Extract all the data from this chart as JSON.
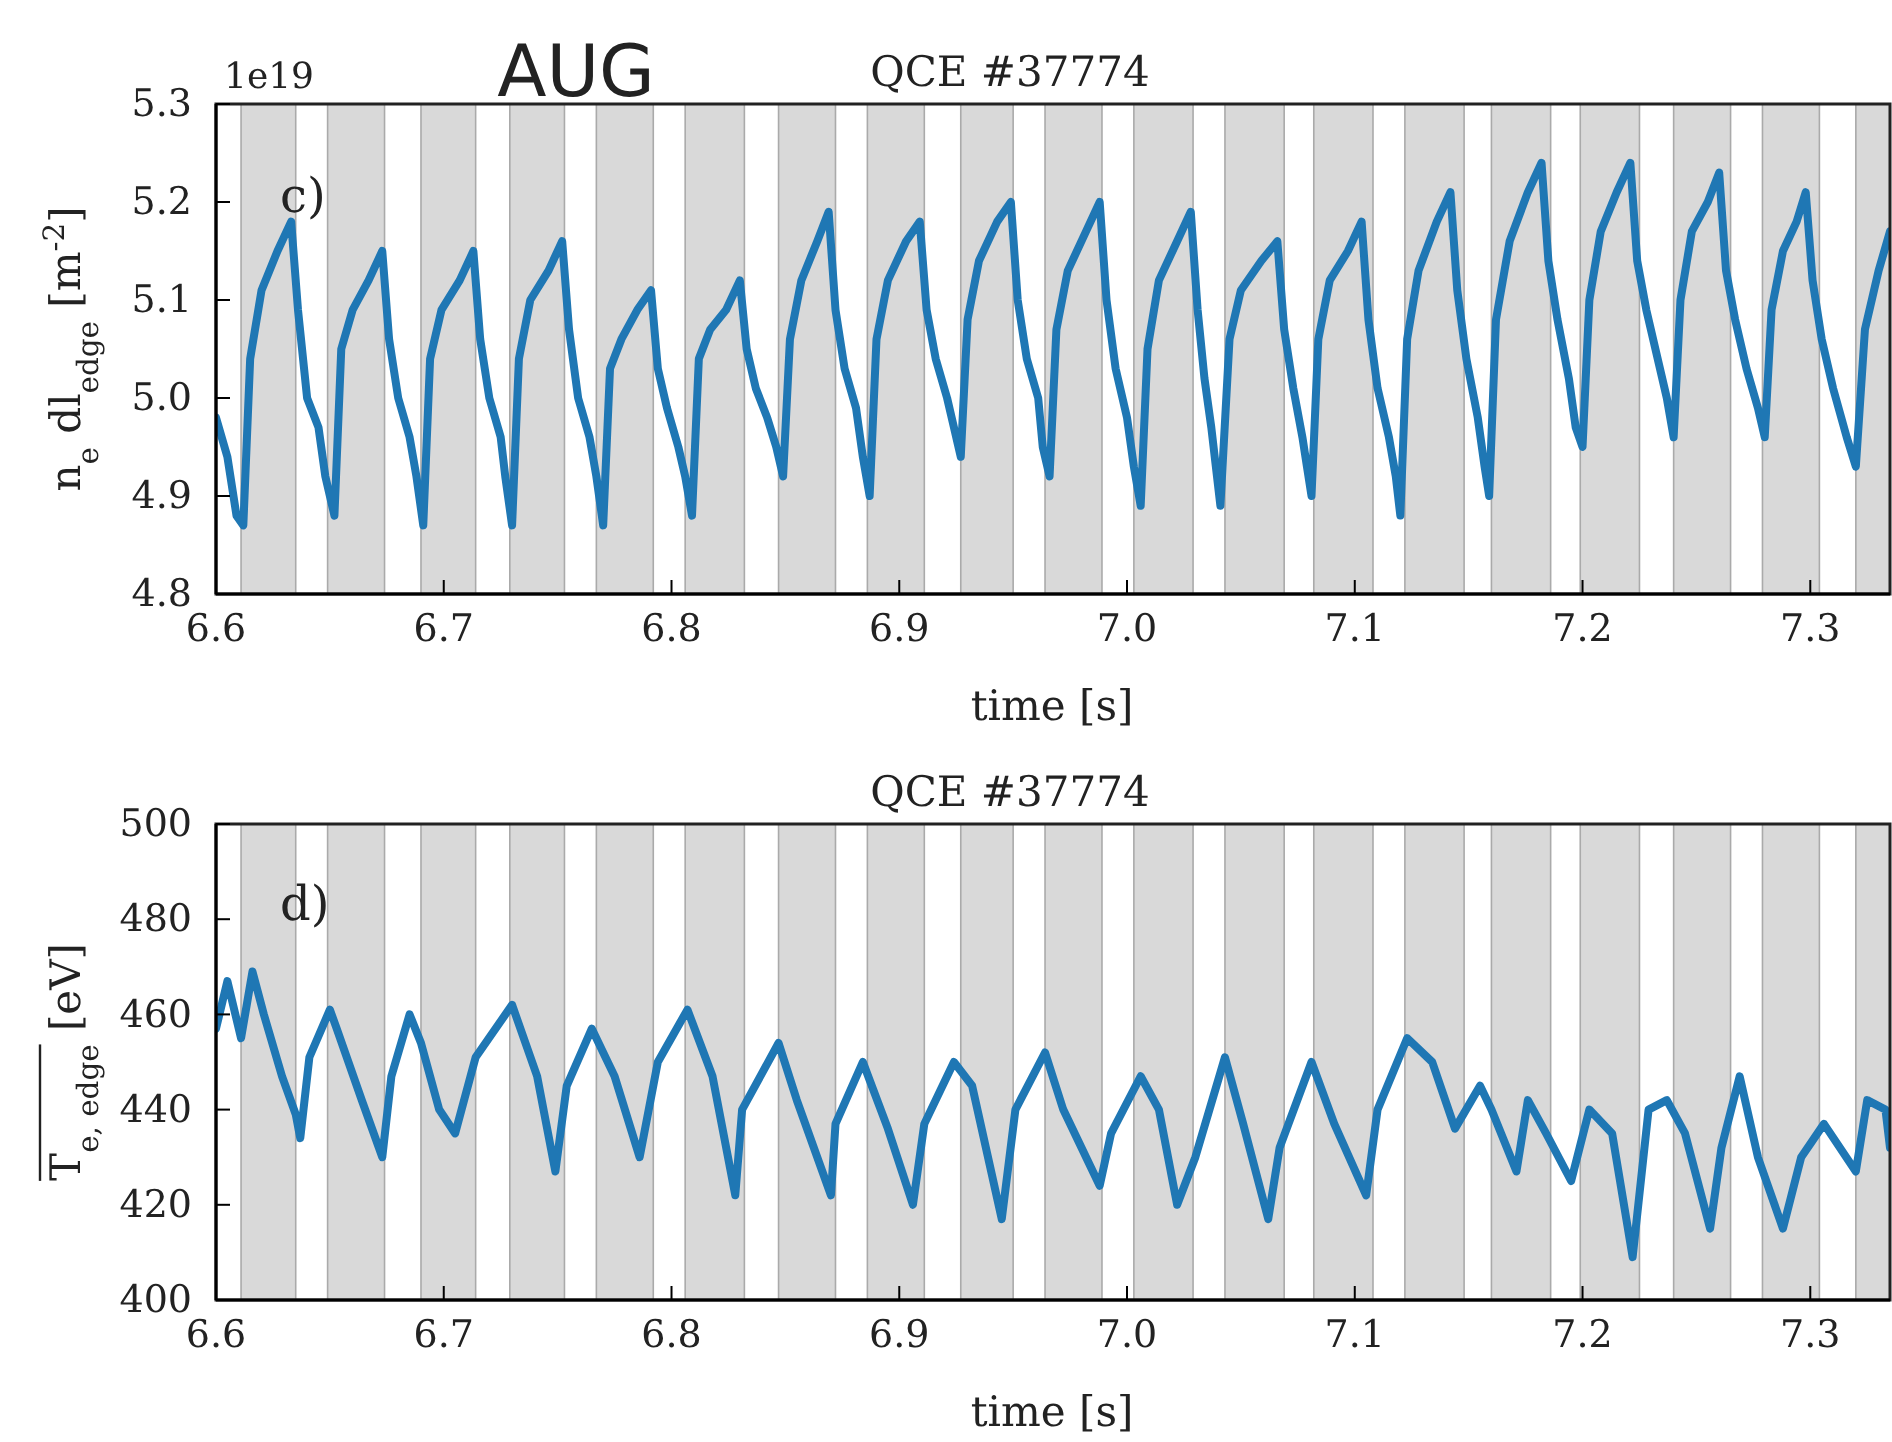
{
  "chart_data": [
    {
      "type": "line",
      "title": "QCE #37774",
      "xlabel": "time [s]",
      "ylabel": "n$_{e}$ dl$_{edge}$ [m$^{-2}$]",
      "annotations": [
        "AUG",
        "1e19",
        "c)"
      ],
      "xlim": [
        6.6,
        7.335
      ],
      "xticks": [
        6.6,
        6.7,
        6.8,
        6.9,
        {
          "value": 7.0,
          "label": "7.0"
        },
        7.1,
        7.2,
        7.3
      ],
      "ylim": [
        4.8,
        5.3
      ],
      "yticks": [
        4.8,
        4.9,
        {
          "value": 5.0,
          "label": "5.0"
        },
        5.1,
        5.2,
        5.3
      ],
      "grid": false,
      "bands": [
        {
          "axis": "x",
          "from": 6.611,
          "to": 6.635,
          "color": "#d9d9d9"
        },
        {
          "axis": "x",
          "from": 6.649,
          "to": 6.674,
          "color": "#d9d9d9"
        },
        {
          "axis": "x",
          "from": 6.69,
          "to": 6.714,
          "color": "#d9d9d9"
        },
        {
          "axis": "x",
          "from": 6.729,
          "to": 6.753,
          "color": "#d9d9d9"
        },
        {
          "axis": "x",
          "from": 6.767,
          "to": 6.792,
          "color": "#d9d9d9"
        },
        {
          "axis": "x",
          "from": 6.806,
          "to": 6.832,
          "color": "#d9d9d9"
        },
        {
          "axis": "x",
          "from": 6.847,
          "to": 6.872,
          "color": "#d9d9d9"
        },
        {
          "axis": "x",
          "from": 6.886,
          "to": 6.911,
          "color": "#d9d9d9"
        },
        {
          "axis": "x",
          "from": 6.927,
          "to": 6.95,
          "color": "#d9d9d9"
        },
        {
          "axis": "x",
          "from": 6.964,
          "to": 6.989,
          "color": "#d9d9d9"
        },
        {
          "axis": "x",
          "from": 7.003,
          "to": 7.029,
          "color": "#d9d9d9"
        },
        {
          "axis": "x",
          "from": 7.043,
          "to": 7.069,
          "color": "#d9d9d9"
        },
        {
          "axis": "x",
          "from": 7.082,
          "to": 7.108,
          "color": "#d9d9d9"
        },
        {
          "axis": "x",
          "from": 7.122,
          "to": 7.148,
          "color": "#d9d9d9"
        },
        {
          "axis": "x",
          "from": 7.16,
          "to": 7.186,
          "color": "#d9d9d9"
        },
        {
          "axis": "x",
          "from": 7.199,
          "to": 7.225,
          "color": "#d9d9d9"
        },
        {
          "axis": "x",
          "from": 7.24,
          "to": 7.265,
          "color": "#d9d9d9"
        },
        {
          "axis": "x",
          "from": 7.279,
          "to": 7.304,
          "color": "#d9d9d9"
        },
        {
          "axis": "x",
          "from": 7.32,
          "to": 7.335,
          "color": "#d9d9d9"
        }
      ],
      "series": [
        {
          "color": "#1f77b4",
          "x": [
            6.6,
            6.605,
            6.609,
            6.612,
            6.615,
            6.62,
            6.627,
            6.633,
            6.636,
            6.64,
            6.645,
            6.648,
            6.652,
            6.655,
            6.66,
            6.667,
            6.673,
            6.676,
            6.68,
            6.685,
            6.688,
            6.691,
            6.694,
            6.699,
            6.707,
            6.713,
            6.716,
            6.72,
            6.725,
            6.727,
            6.73,
            6.733,
            6.738,
            6.746,
            6.752,
            6.755,
            6.759,
            6.764,
            6.767,
            6.77,
            6.773,
            6.778,
            6.785,
            6.791,
            6.794,
            6.798,
            6.803,
            6.806,
            6.809,
            6.812,
            6.817,
            6.824,
            6.83,
            6.833,
            6.837,
            6.842,
            6.846,
            6.849,
            6.852,
            6.857,
            6.864,
            6.869,
            6.872,
            6.876,
            6.881,
            6.884,
            6.887,
            6.89,
            6.895,
            6.903,
            6.909,
            6.912,
            6.916,
            6.921,
            6.924,
            6.927,
            6.93,
            6.935,
            6.943,
            6.949,
            6.952,
            6.956,
            6.961,
            6.963,
            6.966,
            6.969,
            6.974,
            6.982,
            6.988,
            6.991,
            6.995,
            7.0,
            7.003,
            7.006,
            7.009,
            7.014,
            7.022,
            7.028,
            7.031,
            7.034,
            7.037,
            7.039,
            7.041,
            7.045,
            7.05,
            7.059,
            7.066,
            7.069,
            7.073,
            7.077,
            7.079,
            7.081,
            7.084,
            7.089,
            7.097,
            7.103,
            7.106,
            7.11,
            7.115,
            7.118,
            7.12,
            7.123,
            7.128,
            7.136,
            7.142,
            7.145,
            7.149,
            7.154,
            7.157,
            7.159,
            7.162,
            7.168,
            7.176,
            7.182,
            7.185,
            7.189,
            7.194,
            7.197,
            7.2,
            7.203,
            7.208,
            7.215,
            7.221,
            7.224,
            7.228,
            7.233,
            7.237,
            7.24,
            7.243,
            7.248,
            7.255,
            7.26,
            7.263,
            7.267,
            7.272,
            7.277,
            7.28,
            7.283,
            7.288,
            7.294,
            7.298,
            7.301,
            7.305,
            7.31,
            7.316,
            7.32,
            7.324,
            7.33,
            7.335
          ],
          "values": [
            4.98,
            4.94,
            4.88,
            4.87,
            5.04,
            5.11,
            5.15,
            5.18,
            5.09,
            5.0,
            4.97,
            4.92,
            4.88,
            5.05,
            5.09,
            5.12,
            5.15,
            5.06,
            5.0,
            4.96,
            4.92,
            4.87,
            5.04,
            5.09,
            5.12,
            5.15,
            5.06,
            5.0,
            4.96,
            4.92,
            4.87,
            5.04,
            5.1,
            5.13,
            5.16,
            5.07,
            5.0,
            4.96,
            4.92,
            4.87,
            5.03,
            5.06,
            5.09,
            5.11,
            5.03,
            4.99,
            4.95,
            4.92,
            4.88,
            5.04,
            5.07,
            5.09,
            5.12,
            5.05,
            5.01,
            4.98,
            4.95,
            4.92,
            5.06,
            5.12,
            5.16,
            5.19,
            5.09,
            5.03,
            4.99,
            4.94,
            4.9,
            5.06,
            5.12,
            5.16,
            5.18,
            5.09,
            5.04,
            5.0,
            4.97,
            4.94,
            5.08,
            5.14,
            5.18,
            5.2,
            5.1,
            5.04,
            5.0,
            4.95,
            4.92,
            5.07,
            5.13,
            5.17,
            5.2,
            5.1,
            5.03,
            4.98,
            4.93,
            4.89,
            5.05,
            5.12,
            5.16,
            5.19,
            5.09,
            5.02,
            4.97,
            4.93,
            4.89,
            5.06,
            5.11,
            5.14,
            5.16,
            5.07,
            5.01,
            4.96,
            4.93,
            4.9,
            5.06,
            5.12,
            5.15,
            5.18,
            5.08,
            5.01,
            4.96,
            4.92,
            4.88,
            5.06,
            5.13,
            5.18,
            5.21,
            5.11,
            5.04,
            4.98,
            4.93,
            4.9,
            5.08,
            5.16,
            5.21,
            5.24,
            5.14,
            5.08,
            5.02,
            4.97,
            4.95,
            5.1,
            5.17,
            5.21,
            5.24,
            5.14,
            5.09,
            5.04,
            5.0,
            4.96,
            5.1,
            5.17,
            5.2,
            5.23,
            5.13,
            5.08,
            5.03,
            4.99,
            4.96,
            5.09,
            5.15,
            5.18,
            5.21,
            5.12,
            5.06,
            5.01,
            4.96,
            4.93,
            5.07,
            5.13,
            5.17
          ]
        }
      ]
    },
    {
      "type": "line",
      "title": "QCE #37774",
      "xlabel": "time [s]",
      "ylabel": "T$_{e, edge}$ [eV]",
      "annotations": [
        "d)"
      ],
      "xlim": [
        6.6,
        7.335
      ],
      "xticks": [
        6.6,
        6.7,
        6.8,
        6.9,
        {
          "value": 7.0,
          "label": "7.0"
        },
        7.1,
        7.2,
        7.3
      ],
      "ylim": [
        400,
        500
      ],
      "yticks": [
        400,
        420,
        440,
        460,
        480,
        500
      ],
      "grid": false,
      "bands": [
        {
          "axis": "x",
          "from": 6.611,
          "to": 6.635,
          "color": "#d9d9d9"
        },
        {
          "axis": "x",
          "from": 6.649,
          "to": 6.674,
          "color": "#d9d9d9"
        },
        {
          "axis": "x",
          "from": 6.69,
          "to": 6.714,
          "color": "#d9d9d9"
        },
        {
          "axis": "x",
          "from": 6.729,
          "to": 6.753,
          "color": "#d9d9d9"
        },
        {
          "axis": "x",
          "from": 6.767,
          "to": 6.792,
          "color": "#d9d9d9"
        },
        {
          "axis": "x",
          "from": 6.806,
          "to": 6.832,
          "color": "#d9d9d9"
        },
        {
          "axis": "x",
          "from": 6.847,
          "to": 6.872,
          "color": "#d9d9d9"
        },
        {
          "axis": "x",
          "from": 6.886,
          "to": 6.911,
          "color": "#d9d9d9"
        },
        {
          "axis": "x",
          "from": 6.927,
          "to": 6.95,
          "color": "#d9d9d9"
        },
        {
          "axis": "x",
          "from": 6.964,
          "to": 6.989,
          "color": "#d9d9d9"
        },
        {
          "axis": "x",
          "from": 7.003,
          "to": 7.029,
          "color": "#d9d9d9"
        },
        {
          "axis": "x",
          "from": 7.043,
          "to": 7.069,
          "color": "#d9d9d9"
        },
        {
          "axis": "x",
          "from": 7.082,
          "to": 7.108,
          "color": "#d9d9d9"
        },
        {
          "axis": "x",
          "from": 7.122,
          "to": 7.148,
          "color": "#d9d9d9"
        },
        {
          "axis": "x",
          "from": 7.16,
          "to": 7.186,
          "color": "#d9d9d9"
        },
        {
          "axis": "x",
          "from": 7.199,
          "to": 7.225,
          "color": "#d9d9d9"
        },
        {
          "axis": "x",
          "from": 7.24,
          "to": 7.265,
          "color": "#d9d9d9"
        },
        {
          "axis": "x",
          "from": 7.279,
          "to": 7.304,
          "color": "#d9d9d9"
        },
        {
          "axis": "x",
          "from": 7.32,
          "to": 7.335,
          "color": "#d9d9d9"
        }
      ],
      "series": [
        {
          "color": "#1f77b4",
          "x": [
            6.6,
            6.605,
            6.611,
            6.616,
            6.621,
            6.629,
            6.635,
            6.637,
            6.641,
            6.65,
            6.653,
            6.664,
            6.673,
            6.677,
            6.685,
            6.69,
            6.698,
            6.705,
            6.714,
            6.73,
            6.741,
            6.749,
            6.754,
            6.765,
            6.775,
            6.786,
            6.794,
            6.807,
            6.818,
            6.828,
            6.831,
            6.847,
            6.855,
            6.87,
            6.872,
            6.884,
            6.895,
            6.906,
            6.911,
            6.924,
            6.932,
            6.945,
            6.951,
            6.964,
            6.972,
            6.988,
            6.993,
            7.006,
            7.014,
            7.022,
            7.03,
            7.043,
            7.051,
            7.062,
            7.067,
            7.081,
            7.091,
            7.105,
            7.11,
            7.123,
            7.134,
            7.144,
            7.155,
            7.16,
            7.171,
            7.176,
            7.184,
            7.195,
            7.203,
            7.213,
            7.222,
            7.229,
            7.237,
            7.245,
            7.256,
            7.261,
            7.269,
            7.277,
            7.288,
            7.296,
            7.306,
            7.32,
            7.325,
            7.333,
            7.335
          ],
          "values": [
            457,
            467,
            455,
            469,
            460,
            447,
            439,
            434,
            451,
            461,
            457,
            442,
            430,
            447,
            460,
            454,
            440,
            435,
            451,
            462,
            447,
            427,
            445,
            457,
            447,
            430,
            450,
            461,
            447,
            422,
            440,
            454,
            442,
            422,
            437,
            450,
            436,
            420,
            437,
            450,
            445,
            417,
            440,
            452,
            440,
            424,
            435,
            447,
            440,
            420,
            430,
            451,
            437,
            417,
            432,
            450,
            437,
            422,
            440,
            455,
            450,
            436,
            445,
            440,
            427,
            442,
            435,
            425,
            440,
            435,
            409,
            440,
            442,
            435,
            415,
            432,
            447,
            430,
            415,
            430,
            437,
            427,
            442,
            440,
            432
          ]
        }
      ]
    }
  ]
}
